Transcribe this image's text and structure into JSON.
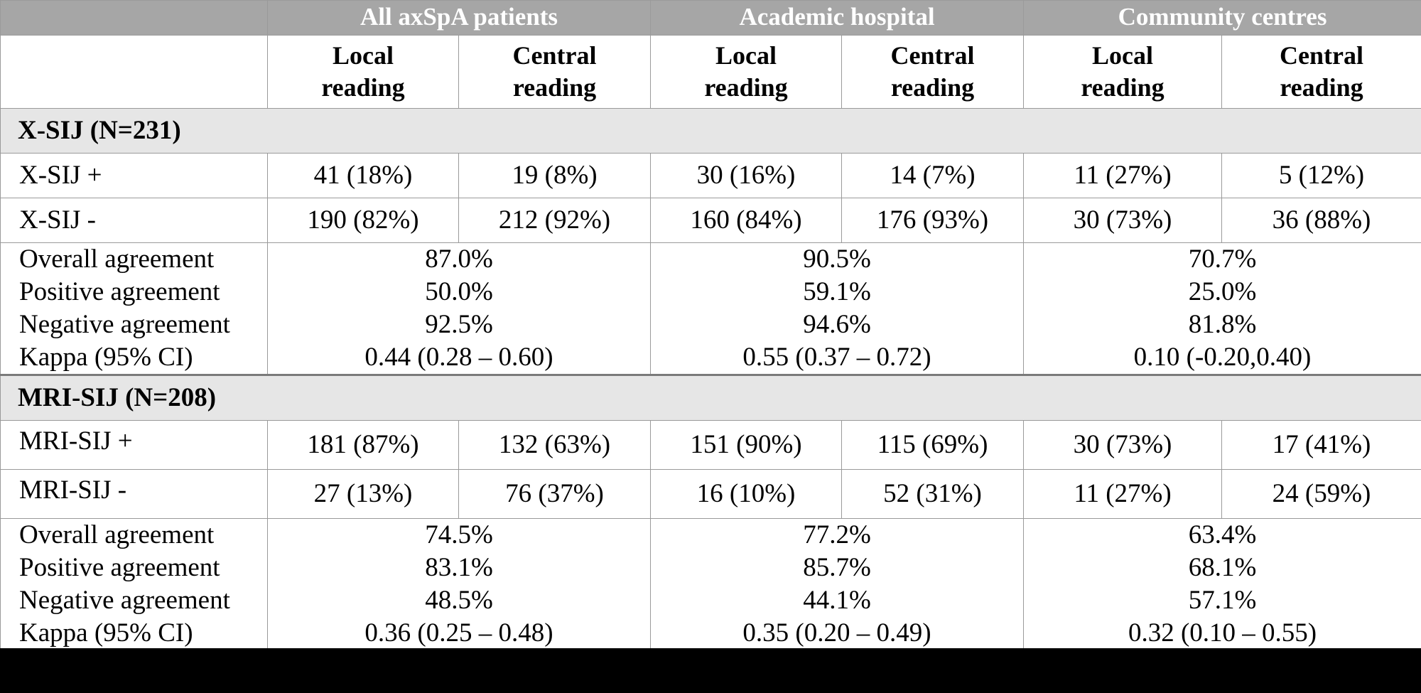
{
  "header": {
    "groups": [
      "All axSpA patients",
      "Academic hospital",
      "Community centres"
    ],
    "sub_local": "Local reading",
    "sub_central": "Central reading"
  },
  "xsij": {
    "section_title": "X-SIJ (N=231)",
    "rows": [
      {
        "label": "X-SIJ +",
        "values": [
          "41 (18%)",
          "19 (8%)",
          "30 (16%)",
          "14 (7%)",
          "11 (27%)",
          "5 (12%)"
        ]
      },
      {
        "label": "X-SIJ -",
        "values": [
          "190 (82%)",
          "212 (92%)",
          "160 (84%)",
          "176 (93%)",
          "30 (73%)",
          "36 (88%)"
        ]
      }
    ],
    "stats_labels": [
      "Overall agreement",
      "Positive agreement",
      "Negative agreement",
      "Kappa (95% CI)"
    ],
    "stats": [
      [
        "87.0%",
        "50.0%",
        "92.5%",
        "0.44 (0.28 – 0.60)"
      ],
      [
        "90.5%",
        "59.1%",
        "94.6%",
        "0.55 (0.37 – 0.72)"
      ],
      [
        "70.7%",
        "25.0%",
        "81.8%",
        "0.10 (-0.20,0.40)"
      ]
    ]
  },
  "mrisij": {
    "section_title": "MRI-SIJ (N=208)",
    "rows": [
      {
        "label": "MRI-SIJ +",
        "values": [
          "181 (87%)",
          "132 (63%)",
          "151 (90%)",
          "115 (69%)",
          "30 (73%)",
          "17 (41%)"
        ]
      },
      {
        "label": "MRI-SIJ -",
        "values": [
          "27 (13%)",
          "76 (37%)",
          "16 (10%)",
          "52 (31%)",
          "11 (27%)",
          "24 (59%)"
        ]
      }
    ],
    "stats_labels": [
      "Overall agreement",
      "Positive agreement",
      "Negative agreement",
      "Kappa (95% CI)"
    ],
    "stats": [
      [
        "74.5%",
        "83.1%",
        "48.5%",
        "0.36 (0.25 – 0.48)"
      ],
      [
        "77.2%",
        "85.7%",
        "44.1%",
        "0.35 (0.20 – 0.49)"
      ],
      [
        "63.4%",
        "68.1%",
        "57.1%",
        "0.32 (0.10 – 0.55)"
      ]
    ]
  },
  "colors": {
    "header_bg": "#a6a6a6",
    "section_bg": "#e6e6e6",
    "border": "#9a9a9a",
    "footer_bg": "#000000"
  }
}
